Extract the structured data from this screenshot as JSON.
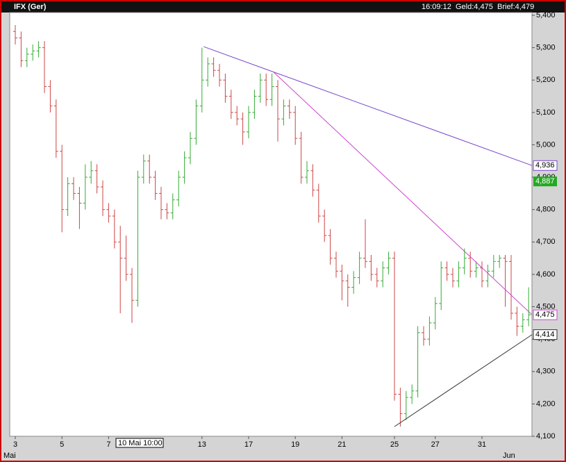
{
  "chart_data": {
    "type": "ohlc",
    "title": "IFX (Ger)",
    "time": "16:09:12",
    "bid": "Geld:4,475",
    "ask": "Brief:4,479",
    "cursor_label": "10 Mai 10:00",
    "months": [
      "Mai",
      "Jun"
    ],
    "categories": [
      "3",
      null,
      null,
      null,
      null,
      null,
      null,
      null,
      "5",
      null,
      null,
      null,
      null,
      null,
      null,
      null,
      "7",
      null,
      null,
      null,
      null,
      null,
      null,
      null,
      null,
      null,
      null,
      null,
      null,
      null,
      null,
      null,
      "13",
      null,
      null,
      null,
      null,
      null,
      null,
      null,
      "17",
      null,
      null,
      null,
      null,
      null,
      null,
      null,
      "19",
      null,
      null,
      null,
      null,
      null,
      null,
      null,
      "21",
      null,
      null,
      null,
      null,
      null,
      null,
      null,
      null,
      "25",
      null,
      null,
      null,
      null,
      null,
      null,
      "27",
      null,
      null,
      null,
      null,
      null,
      null,
      null,
      "31",
      null,
      null,
      null,
      null,
      null,
      null,
      null,
      null
    ],
    "open": [
      5350,
      5330,
      5260,
      5280,
      5290,
      5300,
      5180,
      5120,
      4980,
      4800,
      4880,
      4850,
      4820,
      4900,
      4920,
      4870,
      4800,
      4780,
      4700,
      4650,
      4600,
      4520,
      4900,
      4950,
      4900,
      4850,
      4800,
      4790,
      4830,
      4900,
      4960,
      5020,
      5120,
      5200,
      5250,
      5230,
      5200,
      5150,
      5100,
      5080,
      5040,
      5100,
      5150,
      5200,
      5140,
      5180,
      5080,
      5120,
      5100,
      5020,
      4900,
      4920,
      4860,
      4780,
      4720,
      4650,
      4610,
      4580,
      4560,
      4590,
      4650,
      4640,
      4600,
      4580,
      4620,
      4650,
      4230,
      4170,
      4220,
      4240,
      4420,
      4400,
      4450,
      4510,
      4620,
      4600,
      4580,
      4620,
      4650,
      4610,
      4620,
      4580,
      4610,
      4640,
      4650,
      4640,
      4480,
      4440,
      4460
    ],
    "high": [
      5370,
      5350,
      5300,
      5310,
      5320,
      5320,
      5200,
      5140,
      5000,
      4900,
      4900,
      4870,
      4940,
      4950,
      4940,
      4890,
      4820,
      4800,
      4750,
      4720,
      4620,
      4920,
      4970,
      4970,
      4920,
      4870,
      4820,
      4850,
      4920,
      4980,
      5040,
      5140,
      5300,
      5270,
      5270,
      5250,
      5220,
      5170,
      5120,
      5100,
      5120,
      5170,
      5220,
      5220,
      5220,
      5200,
      5140,
      5140,
      5120,
      5040,
      4950,
      4940,
      4880,
      4800,
      4740,
      4670,
      4630,
      4600,
      4610,
      4670,
      4770,
      4660,
      4620,
      4640,
      4670,
      4670,
      4250,
      4240,
      4260,
      4440,
      4440,
      4470,
      4530,
      4640,
      4640,
      4620,
      4640,
      4680,
      4670,
      4640,
      4640,
      4630,
      4660,
      4660,
      4660,
      4660,
      4500,
      4480,
      4560
    ],
    "low": [
      5310,
      5240,
      5240,
      5260,
      5270,
      5160,
      5100,
      4960,
      4730,
      4780,
      4830,
      4740,
      4800,
      4880,
      4850,
      4780,
      4760,
      4680,
      4480,
      4580,
      4450,
      4500,
      4880,
      4880,
      4830,
      4770,
      4770,
      4770,
      4810,
      4880,
      4940,
      5000,
      5100,
      5180,
      5210,
      5180,
      5130,
      5080,
      5060,
      5000,
      5020,
      5080,
      5130,
      5120,
      5120,
      5010,
      5060,
      5080,
      5000,
      4880,
      4880,
      4840,
      4760,
      4700,
      4630,
      4590,
      4520,
      4500,
      4540,
      4570,
      4620,
      4580,
      4560,
      4560,
      4600,
      4210,
      4130,
      4150,
      4200,
      4220,
      4380,
      4380,
      4430,
      4490,
      4580,
      4560,
      4560,
      4600,
      4590,
      4590,
      4560,
      4560,
      4590,
      4620,
      4500,
      4460,
      4410,
      4420,
      4440
    ],
    "close": [
      5330,
      5260,
      5280,
      5290,
      5300,
      5180,
      5120,
      4980,
      4800,
      4880,
      4850,
      4820,
      4900,
      4920,
      4870,
      4800,
      4780,
      4700,
      4650,
      4600,
      4520,
      4900,
      4950,
      4900,
      4850,
      4800,
      4790,
      4830,
      4900,
      4960,
      5020,
      5120,
      5200,
      5250,
      5230,
      5200,
      5150,
      5100,
      5080,
      5040,
      5100,
      5150,
      5200,
      5140,
      5180,
      5080,
      5120,
      5100,
      5020,
      4900,
      4920,
      4860,
      4780,
      4720,
      4650,
      4610,
      4580,
      4560,
      4590,
      4650,
      4640,
      4600,
      4580,
      4620,
      4650,
      4230,
      4170,
      4220,
      4240,
      4420,
      4400,
      4450,
      4510,
      4620,
      4600,
      4580,
      4620,
      4650,
      4610,
      4620,
      4580,
      4610,
      4640,
      4650,
      4640,
      4480,
      4440,
      4460,
      4475
    ],
    "up_color": "#33aa33",
    "down_color": "#cc4444",
    "ylim": [
      4100,
      5400
    ],
    "yticks": [
      {
        "value": 4100,
        "label": "4,100"
      },
      {
        "value": 4200,
        "label": "4,200"
      },
      {
        "value": 4300,
        "label": "4,300"
      },
      {
        "value": 4400,
        "label": "4,400"
      },
      {
        "value": 4500,
        "label": "4,500"
      },
      {
        "value": 4600,
        "label": "4,600"
      },
      {
        "value": 4700,
        "label": "4,700"
      },
      {
        "value": 4800,
        "label": "4,800"
      },
      {
        "value": 4900,
        "label": "4,900"
      },
      {
        "value": 5000,
        "label": "5,000"
      },
      {
        "value": 5100,
        "label": "5,100"
      },
      {
        "value": 5200,
        "label": "5,200"
      },
      {
        "value": 5300,
        "label": "5,300"
      },
      {
        "value": 5400,
        "label": "5,400"
      }
    ],
    "trendlines": [
      {
        "color": "#7744cc",
        "x": [
          32.3,
          88.6
        ],
        "y": [
          5303,
          {
            "value": 4936,
            "label": "4,936"
          }
        ]
      },
      {
        "color": "#cc44cc",
        "x": [
          44.2,
          88.6
        ],
        "y": [
          5226,
          {
            "value": 4475,
            "label": "4,475"
          }
        ]
      },
      {
        "color": "#333333",
        "x": [
          65,
          88.6
        ],
        "y": [
          4130,
          {
            "value": 4414,
            "label": "4,414"
          }
        ]
      }
    ],
    "price_labels": [
      {
        "value": 4887,
        "label": "4,887",
        "color": "#22aa22"
      }
    ]
  }
}
